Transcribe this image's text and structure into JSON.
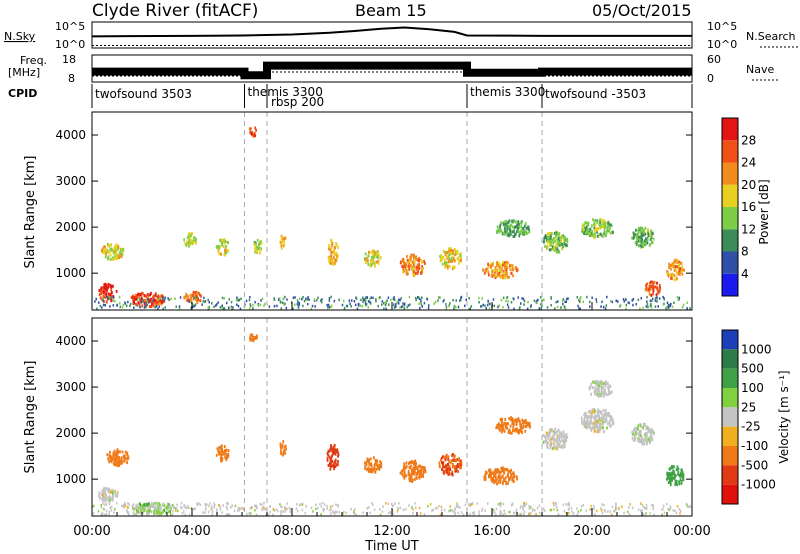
{
  "header": {
    "title": "Clyde River (fitACF)",
    "beam": "Beam 15",
    "date": "05/Oct/2015"
  },
  "top_panels": {
    "nsky_label": "N.Sky",
    "nsky_ticks": [
      "10^5",
      "10^0"
    ],
    "nsearch_label": "N.Search",
    "freq_label_1": "Freq.",
    "freq_label_2": "[MHz]",
    "freq_ticks": [
      "18",
      "8"
    ],
    "nave_ticks": [
      "60",
      "0"
    ],
    "nave_label": "Nave",
    "cpid_label": "CPID"
  },
  "chart_data": [
    {
      "type": "line",
      "panel": "noise",
      "series": [
        {
          "name": "N.Sky",
          "x_hours": [
            0,
            4,
            6,
            8,
            9.5,
            10.5,
            11.5,
            12.5,
            13.5,
            14.5,
            15,
            18,
            24
          ],
          "values_log10": [
            2.2,
            2.3,
            2.4,
            2.6,
            3.0,
            3.4,
            3.9,
            4.2,
            3.8,
            3.2,
            2.4,
            2.3,
            2.3
          ]
        },
        {
          "name": "N.Search",
          "x_hours": [
            0,
            24
          ],
          "values_log10": [
            0.1,
            0.1
          ]
        }
      ],
      "ylim_log10": [
        0,
        5
      ]
    },
    {
      "type": "line",
      "panel": "frequency / nave",
      "series": [
        {
          "name": "Freq. [MHz]",
          "x_hours": [
            0,
            6.1,
            6.1,
            7.0,
            7.0,
            15.0,
            15.0,
            18.0,
            18.0,
            24
          ],
          "values": [
            11.5,
            11.5,
            10,
            10,
            14,
            14,
            11,
            11,
            11.5,
            11.5
          ]
        },
        {
          "name": "Nave",
          "x_hours": [
            0,
            7.0,
            7.0,
            15.0,
            15.0,
            24
          ],
          "values": [
            10,
            10,
            20,
            20,
            10,
            10
          ]
        }
      ],
      "y_left_lim": [
        8,
        18
      ],
      "y_right_lim": [
        0,
        60
      ]
    },
    {
      "type": "table",
      "panel": "CPID",
      "segments": [
        {
          "start": 0,
          "end": 6.1,
          "label": "twofsound 3503"
        },
        {
          "start": 6.1,
          "end": 7.0,
          "label": "themis 3300"
        },
        {
          "start": 7.0,
          "end": 15.0,
          "label": "rbsp 200"
        },
        {
          "start": 15.0,
          "end": 18.0,
          "label": "themis 3300"
        },
        {
          "start": 18.0,
          "end": 24,
          "label": "twofsound -3503"
        }
      ]
    },
    {
      "type": "heatmap",
      "panel": "power",
      "ylabel": "Slant Range [km]",
      "yticks": [
        "1000",
        "2000",
        "3000",
        "4000"
      ],
      "ylim": [
        200,
        4500
      ],
      "colorbar_label": "Power [dB]",
      "colorbar_ticks": [
        "4",
        "8",
        "12",
        "16",
        "20",
        "24",
        "28"
      ],
      "colors": [
        "#1a1aee",
        "#3050a8",
        "#3c8c5a",
        "#7ccd48",
        "#e8d020",
        "#f28c1e",
        "#f05018",
        "#e21414"
      ],
      "blobs": [
        {
          "t": 0.6,
          "r": 600,
          "dt": 0.7,
          "dr": 400,
          "v": 28
        },
        {
          "t": 2.2,
          "r": 450,
          "dt": 1.4,
          "dr": 300,
          "v": 27
        },
        {
          "t": 4.0,
          "r": 500,
          "dt": 0.7,
          "dr": 250,
          "v": 24
        },
        {
          "t": 0.8,
          "r": 1500,
          "dt": 0.9,
          "dr": 350,
          "v": 18
        },
        {
          "t": 3.9,
          "r": 1750,
          "dt": 0.5,
          "dr": 300,
          "v": 16
        },
        {
          "t": 5.2,
          "r": 1600,
          "dt": 0.5,
          "dr": 350,
          "v": 18
        },
        {
          "t": 6.4,
          "r": 4100,
          "dt": 0.35,
          "dr": 200,
          "v": 26
        },
        {
          "t": 6.6,
          "r": 1600,
          "dt": 0.35,
          "dr": 300,
          "v": 14
        },
        {
          "t": 7.6,
          "r": 1700,
          "dt": 0.25,
          "dr": 300,
          "v": 20
        },
        {
          "t": 9.6,
          "r": 1500,
          "dt": 0.45,
          "dr": 550,
          "v": 20
        },
        {
          "t": 11.2,
          "r": 1350,
          "dt": 0.7,
          "dr": 350,
          "v": 17
        },
        {
          "t": 12.8,
          "r": 1200,
          "dt": 1.0,
          "dr": 450,
          "v": 23
        },
        {
          "t": 14.3,
          "r": 1350,
          "dt": 0.9,
          "dr": 450,
          "v": 18
        },
        {
          "t": 16.3,
          "r": 1100,
          "dt": 1.4,
          "dr": 350,
          "v": 22
        },
        {
          "t": 16.8,
          "r": 2000,
          "dt": 1.4,
          "dr": 350,
          "v": 12
        },
        {
          "t": 18.5,
          "r": 1700,
          "dt": 1.0,
          "dr": 450,
          "v": 14
        },
        {
          "t": 20.2,
          "r": 2000,
          "dt": 1.3,
          "dr": 400,
          "v": 14
        },
        {
          "t": 22.0,
          "r": 1800,
          "dt": 0.9,
          "dr": 450,
          "v": 13
        },
        {
          "t": 23.3,
          "r": 1100,
          "dt": 0.7,
          "dr": 450,
          "v": 21
        },
        {
          "t": 22.4,
          "r": 700,
          "dt": 0.6,
          "dr": 300,
          "v": 26
        }
      ]
    },
    {
      "type": "heatmap",
      "panel": "velocity",
      "ylabel": "Slant Range [km]",
      "yticks": [
        "1000",
        "2000",
        "3000",
        "4000"
      ],
      "ylim": [
        200,
        4500
      ],
      "colorbar_label": "Velocity [m s⁻¹]",
      "colorbar_ticks": [
        "1000",
        "500",
        "100",
        "25",
        "-25",
        "-100",
        "-500",
        "-1000"
      ],
      "colors": [
        "#1c3eb8",
        "#2e7b4a",
        "#3fa045",
        "#80d040",
        "#c4c4c4",
        "#f0b020",
        "#f07a18",
        "#e03a14",
        "#e0100c"
      ],
      "blobs": [
        {
          "t": 0.6,
          "r": 700,
          "dt": 0.8,
          "dr": 300,
          "v": 0
        },
        {
          "t": 2.4,
          "r": 400,
          "dt": 1.8,
          "dr": 250,
          "v": 40
        },
        {
          "t": 1.0,
          "r": 1500,
          "dt": 0.9,
          "dr": 350,
          "v": -100
        },
        {
          "t": 5.2,
          "r": 1600,
          "dt": 0.5,
          "dr": 350,
          "v": -120
        },
        {
          "t": 6.4,
          "r": 4100,
          "dt": 0.35,
          "dr": 200,
          "v": -150
        },
        {
          "t": 7.6,
          "r": 1700,
          "dt": 0.25,
          "dr": 300,
          "v": -200
        },
        {
          "t": 9.6,
          "r": 1500,
          "dt": 0.45,
          "dr": 550,
          "v": -700
        },
        {
          "t": 11.2,
          "r": 1350,
          "dt": 0.7,
          "dr": 350,
          "v": -150
        },
        {
          "t": 12.8,
          "r": 1200,
          "dt": 1.0,
          "dr": 450,
          "v": -250
        },
        {
          "t": 14.3,
          "r": 1350,
          "dt": 0.9,
          "dr": 450,
          "v": -300
        },
        {
          "t": 16.3,
          "r": 1100,
          "dt": 1.4,
          "dr": 350,
          "v": -200
        },
        {
          "t": 16.8,
          "r": 2200,
          "dt": 1.4,
          "dr": 350,
          "v": -120
        },
        {
          "t": 18.5,
          "r": 1900,
          "dt": 1.0,
          "dr": 450,
          "v": 0
        },
        {
          "t": 20.2,
          "r": 2300,
          "dt": 1.3,
          "dr": 500,
          "v": 0
        },
        {
          "t": 22.0,
          "r": 2000,
          "dt": 0.9,
          "dr": 450,
          "v": 10
        },
        {
          "t": 23.3,
          "r": 1100,
          "dt": 0.7,
          "dr": 450,
          "v": 90
        },
        {
          "t": 20.3,
          "r": 3000,
          "dt": 1.0,
          "dr": 350,
          "v": 5
        }
      ]
    }
  ],
  "x_axis": {
    "ticks": [
      "00:00",
      "04:00",
      "08:00",
      "12:00",
      "16:00",
      "20:00",
      "00:00"
    ],
    "label": "Time UT"
  }
}
